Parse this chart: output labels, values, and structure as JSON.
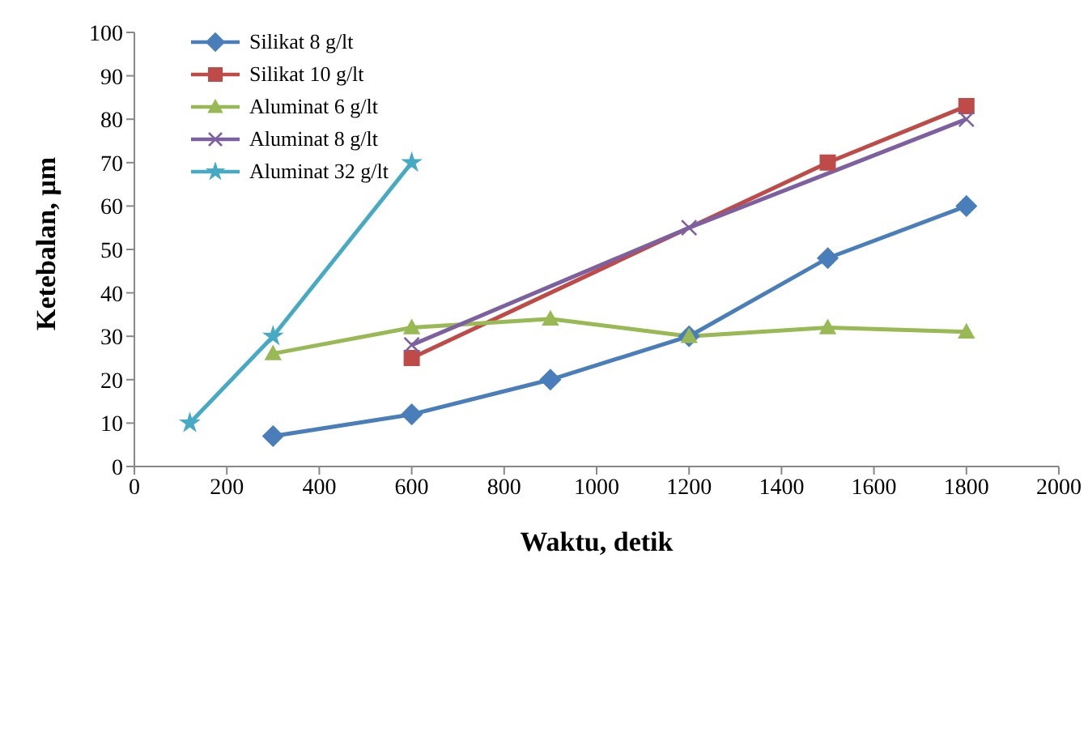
{
  "chart_data": {
    "type": "line",
    "xlabel": "Waktu, detik",
    "ylabel": "Ketebalan, µm",
    "xlim": [
      0,
      2000
    ],
    "xticks": [
      0,
      200,
      400,
      600,
      800,
      1000,
      1200,
      1400,
      1600,
      1800,
      2000
    ],
    "ylim": [
      0,
      100
    ],
    "yticks": [
      0,
      10,
      20,
      30,
      40,
      50,
      60,
      70,
      80,
      90,
      100
    ],
    "grid": false,
    "legend": "top left",
    "line_style": "solid",
    "series": [
      {
        "name": "Silikat 8 g/lt",
        "color": "#4a7ebb",
        "marker": "diamond",
        "x": [
          300,
          600,
          900,
          1200,
          1500,
          1800
        ],
        "values": [
          7,
          12,
          20,
          30,
          48,
          60
        ]
      },
      {
        "name": "Silikat 10 g/lt",
        "color": "#be4b48",
        "marker": "square",
        "x": [
          600,
          1500,
          1800
        ],
        "values": [
          25,
          70,
          83
        ]
      },
      {
        "name": "Aluminat 6 g/lt",
        "color": "#98b954",
        "marker": "triangle",
        "x": [
          300,
          600,
          900,
          1200,
          1500,
          1800
        ],
        "values": [
          26,
          32,
          34,
          30,
          32,
          31
        ]
      },
      {
        "name": "Aluminat 8 g/lt",
        "color": "#7d60a0",
        "marker": "cross",
        "x": [
          600,
          1200,
          1800
        ],
        "values": [
          28,
          55,
          80
        ]
      },
      {
        "name": "Aluminat 32 g/lt",
        "color": "#46aac5",
        "marker": "star",
        "x": [
          120,
          300,
          600
        ],
        "values": [
          10,
          30,
          70
        ]
      }
    ]
  }
}
